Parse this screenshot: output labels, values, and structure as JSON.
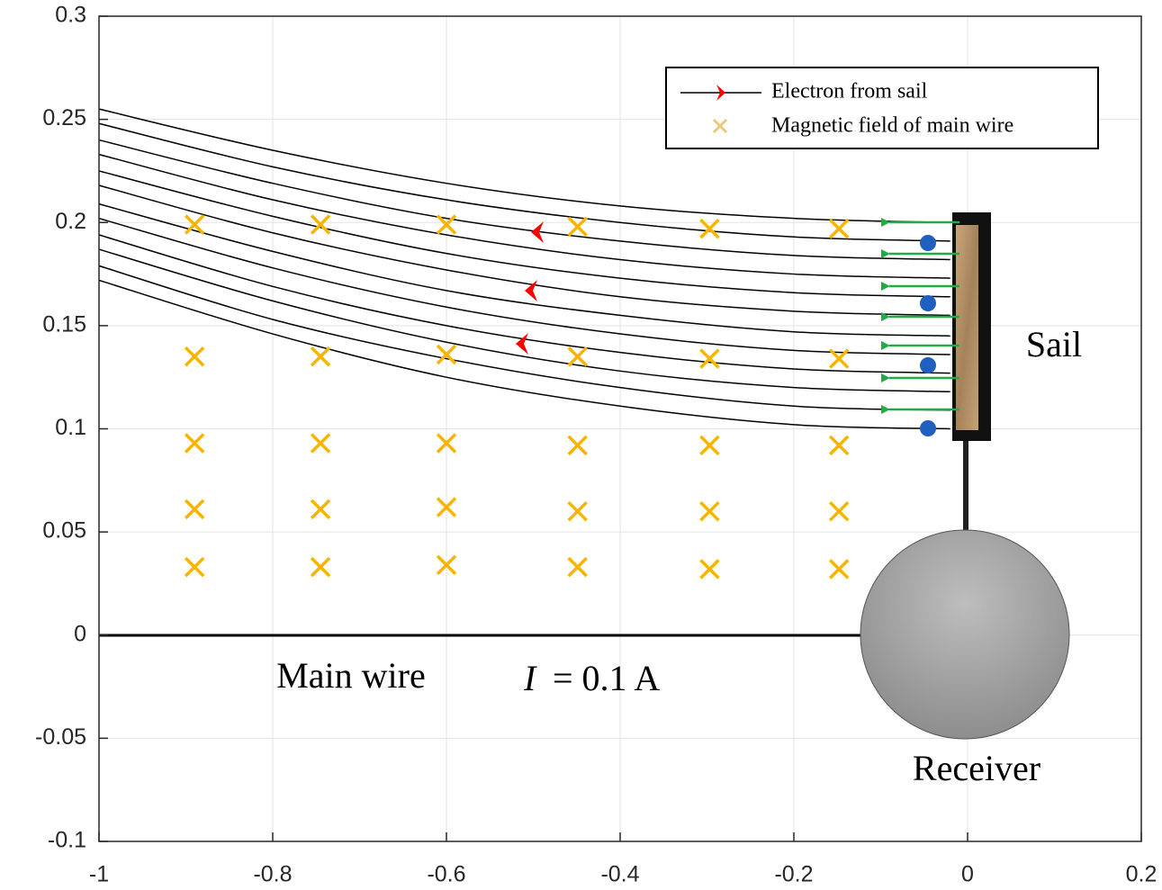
{
  "chart_data": {
    "type": "trajectory",
    "xlim": [
      -1,
      0.2
    ],
    "ylim": [
      -0.1,
      0.3
    ],
    "xticks": [
      -1,
      -0.8,
      -0.6,
      -0.4,
      -0.2,
      0,
      0.2
    ],
    "yticks": [
      -0.1,
      -0.05,
      0,
      0.05,
      0.1,
      0.15,
      0.2,
      0.25,
      0.3
    ],
    "grid": true,
    "legend": "upper right",
    "trajectory_x": [
      -1,
      -0.8,
      -0.6,
      -0.4,
      -0.2,
      -0.02
    ],
    "trajectories": {
      "name": "Electron from sail",
      "color": "#000000",
      "arrow_color": "#ff0000",
      "values": [
        [
          0.255,
          0.235,
          0.219,
          0.208,
          0.202,
          0.2
        ],
        [
          0.248,
          0.227,
          0.211,
          0.2,
          0.193,
          0.191
        ],
        [
          0.24,
          0.219,
          0.202,
          0.191,
          0.184,
          0.182
        ],
        [
          0.233,
          0.211,
          0.194,
          0.182,
          0.175,
          0.173
        ],
        [
          0.225,
          0.203,
          0.185,
          0.173,
          0.166,
          0.164
        ],
        [
          0.218,
          0.195,
          0.177,
          0.164,
          0.157,
          0.155
        ],
        [
          0.209,
          0.186,
          0.167,
          0.155,
          0.147,
          0.145
        ],
        [
          0.202,
          0.178,
          0.159,
          0.146,
          0.138,
          0.136
        ],
        [
          0.194,
          0.169,
          0.15,
          0.137,
          0.129,
          0.127
        ],
        [
          0.187,
          0.162,
          0.142,
          0.128,
          0.12,
          0.118
        ],
        [
          0.179,
          0.153,
          0.134,
          0.12,
          0.111,
          0.109
        ],
        [
          0.172,
          0.146,
          0.125,
          0.111,
          0.102,
          0.1
        ]
      ]
    },
    "field": {
      "name": "Magnetic field of main wire",
      "color": "#f7b500",
      "legend_color": "#eec77a",
      "x": [
        -0.89,
        -0.745,
        -0.6,
        -0.449,
        -0.297,
        -0.148,
        -0.89,
        -0.745,
        -0.6,
        -0.449,
        -0.297,
        -0.148,
        -0.89,
        -0.745,
        -0.6,
        -0.449,
        -0.297,
        -0.148,
        -0.89,
        -0.745,
        -0.6,
        -0.449,
        -0.297,
        -0.148,
        -0.89,
        -0.745,
        -0.6,
        -0.449,
        -0.297,
        -0.148
      ],
      "y": [
        0.199,
        0.199,
        0.199,
        0.198,
        0.197,
        0.197,
        0.135,
        0.135,
        0.136,
        0.135,
        0.134,
        0.134,
        0.093,
        0.093,
        0.093,
        0.092,
        0.092,
        0.092,
        0.061,
        0.061,
        0.062,
        0.06,
        0.06,
        0.06,
        0.033,
        0.033,
        0.034,
        0.033,
        0.032,
        0.032
      ]
    },
    "annotations": {
      "sail": "Sail",
      "receiver": "Receiver",
      "wire": "Main wire",
      "current_symbol": "I",
      "current_value": "= 0.1 A"
    }
  }
}
